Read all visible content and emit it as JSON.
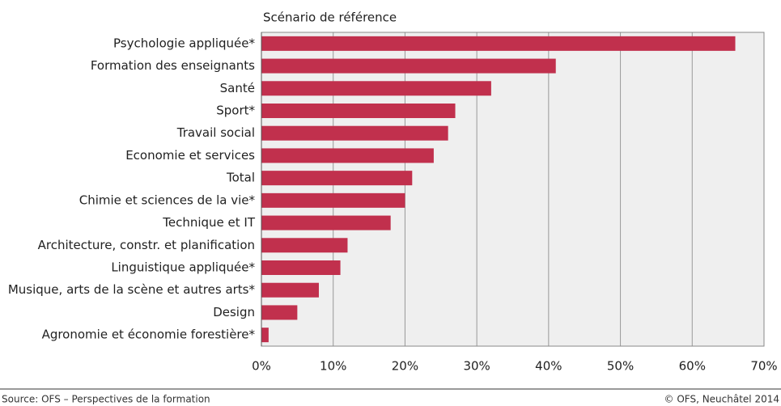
{
  "chart_data": {
    "type": "bar",
    "orientation": "horizontal",
    "subtitle": "Scénario de référence",
    "categories": [
      "Psychologie appliquée*",
      "Formation des enseignants",
      "Santé",
      "Sport*",
      "Travail social",
      "Economie et services",
      "Total",
      "Chimie et sciences de la vie*",
      "Technique et IT",
      "Architecture, constr. et planification",
      "Linguistique appliquée*",
      "Musique, arts de la scène et autres arts*",
      "Design",
      "Agronomie et économie forestière*"
    ],
    "values": [
      66,
      41,
      32,
      27,
      26,
      24,
      21,
      20,
      18,
      12,
      11,
      8,
      5,
      1
    ],
    "color": "#c1304d",
    "xlim": [
      0,
      70
    ],
    "xticks": [
      {
        "value": 0,
        "label": "0%"
      },
      {
        "value": 10,
        "label": "10%"
      },
      {
        "value": 20,
        "label": "20%"
      },
      {
        "value": 30,
        "label": "30%"
      },
      {
        "value": 40,
        "label": "40%"
      },
      {
        "value": 50,
        "label": "50%"
      },
      {
        "value": 60,
        "label": "60%"
      },
      {
        "value": 70,
        "label": "70%"
      }
    ],
    "grid": true,
    "source": "Source: OFS – Perspectives de la formation",
    "copyright": "© OFS, Neuchâtel 2014"
  }
}
